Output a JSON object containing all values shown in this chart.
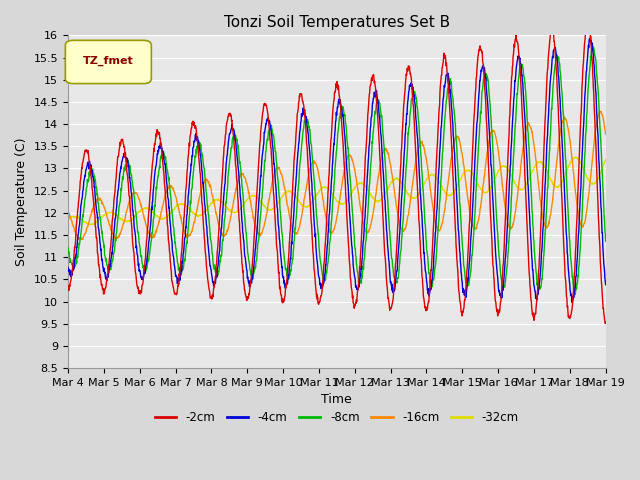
{
  "title": "Tonzi Soil Temperatures Set B",
  "xlabel": "Time",
  "ylabel": "Soil Temperature (C)",
  "ylim": [
    8.5,
    16.0
  ],
  "yticks": [
    8.5,
    9.0,
    9.5,
    10.0,
    10.5,
    11.0,
    11.5,
    12.0,
    12.5,
    13.0,
    13.5,
    14.0,
    14.5,
    15.0,
    15.5,
    16.0
  ],
  "xtick_labels": [
    "Mar 4",
    "Mar 5",
    "Mar 6",
    "Mar 7",
    "Mar 8",
    "Mar 9",
    "Mar 10",
    "Mar 11",
    "Mar 12",
    "Mar 13",
    "Mar 14",
    "Mar 15",
    "Mar 16",
    "Mar 17",
    "Mar 18",
    "Mar 19"
  ],
  "legend_title": "TZ_fmet",
  "legend_entries": [
    "-2cm",
    "-4cm",
    "-8cm",
    "-16cm",
    "-32cm"
  ],
  "line_colors": [
    "#dd0000",
    "#0000dd",
    "#00bb00",
    "#ff8800",
    "#dddd00"
  ],
  "bg_color": "#e8e8e8",
  "fig_color": "#d8d8d8",
  "title_fontsize": 11,
  "axis_label_fontsize": 9,
  "tick_fontsize": 8
}
